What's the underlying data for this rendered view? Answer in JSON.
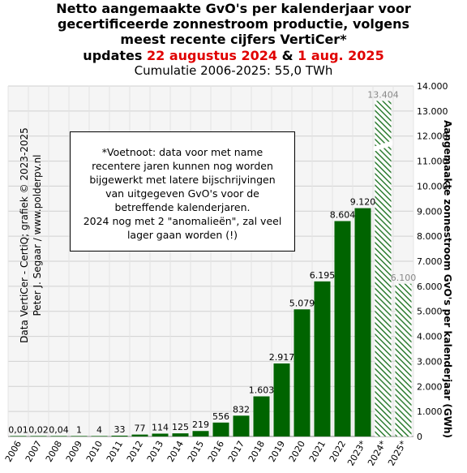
{
  "header": {
    "title_line1": "Netto aangemaakte GvO's per kalenderjaar voor",
    "title_line2": "gecertificeerde zonnestroom productie, volgens",
    "title_line3": "meest recente cijfers VertiCer*",
    "updates_prefix": "updates",
    "update1": "22 augustus 2024",
    "update_sep": "&",
    "update2": "1 aug. 2025",
    "cumulative": "Cumulatie 2006-2025:  55,0 TWh"
  },
  "note": {
    "lines": [
      "*Voetnoot: data voor met name",
      "recentere jaren kunnen nog worden",
      "bijgewerkt met latere bijschrijvingen",
      "van uitgegeven GvO's  voor de",
      "betreffende kalenderjaren.",
      "2024 nog met 2 \"anomalieën\",  zal veel",
      "lager gaan worden (!)"
    ]
  },
  "source": {
    "line1": "Data VertiCer - CertiQ;  grafiek © 2023-2025",
    "line2": "Peter J. Segaar / www.polderpv.nl"
  },
  "colors": {
    "bar": "#006400",
    "hatch": "#2e7d32",
    "grid": "#d0d0d0",
    "plot_bg": "#f5f5f5",
    "accent_red": "#e00000"
  },
  "chart_data": {
    "type": "bar",
    "categories": [
      "2006",
      "2007",
      "2008",
      "2009",
      "2010",
      "2011",
      "2012",
      "2013",
      "2014",
      "2015",
      "2016",
      "2017",
      "2018",
      "2019",
      "2020",
      "2021",
      "2022",
      "2023*",
      "2024*",
      "2025*"
    ],
    "values": [
      0.01,
      0.02,
      0.04,
      1,
      4,
      33,
      77,
      114,
      125,
      219,
      556,
      832,
      1603,
      2917,
      5079,
      6195,
      8604,
      9120,
      13404,
      6100
    ],
    "value_labels": [
      "0,01",
      "0,02",
      "0,04",
      "1",
      "4",
      "33",
      "77",
      "114",
      "125",
      "219",
      "556",
      "832",
      "1.603",
      "2.917",
      "5.079",
      "6.195",
      "8.604",
      "9.120",
      "13.404",
      "6.100"
    ],
    "hatched": [
      false,
      false,
      false,
      false,
      false,
      false,
      false,
      false,
      false,
      false,
      false,
      false,
      false,
      false,
      false,
      false,
      false,
      false,
      true,
      true
    ],
    "ylabel": "Aangemaakte zonnestroom GvO's per kalenderjaar (GWh)",
    "ylim": [
      0,
      14000
    ],
    "yticks": [
      0,
      1000,
      2000,
      3000,
      4000,
      5000,
      6000,
      7000,
      8000,
      9000,
      10000,
      11000,
      12000,
      13000,
      14000
    ],
    "ytick_labels": [
      "0",
      "1.000",
      "2.000",
      "3.000",
      "4.000",
      "5.000",
      "6.000",
      "7.000",
      "8.000",
      "9.000",
      "10.000",
      "11.000",
      "12.000",
      "13.000",
      "14.000"
    ],
    "grid": true,
    "y_axis_side": "right"
  }
}
